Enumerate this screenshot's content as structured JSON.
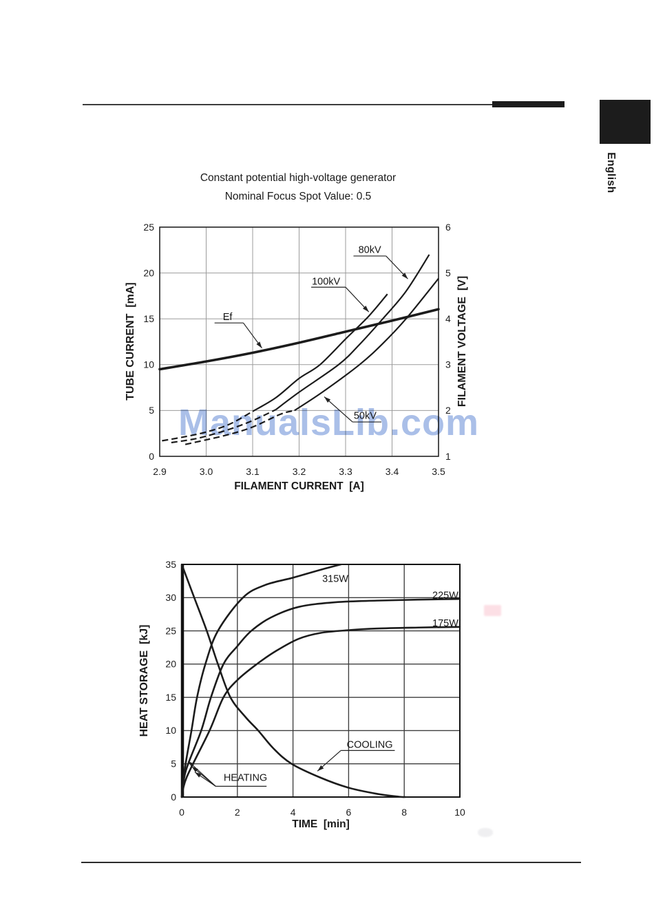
{
  "page": {
    "sidebar_tab": "English"
  },
  "watermark": "ManualsLib.com",
  "chart_data": [
    {
      "type": "line",
      "title": "Constant potential high-voltage generator",
      "subtitle": "Nominal Focus Spot Value: 0.5",
      "xlabel": "FILAMENT CURRENT  [A]",
      "ylabel": "TUBE CURRENT  [mA]",
      "ylabel_right": "FILAMENT VOLTAGE  [V]",
      "xlim": [
        2.9,
        3.5
      ],
      "ylim": [
        0,
        25
      ],
      "ylim_right": [
        1,
        6
      ],
      "xticks": [
        "2.9",
        "3.0",
        "3.1",
        "3.2",
        "3.3",
        "3.4",
        "3.5"
      ],
      "yticks": [
        "0",
        "5",
        "10",
        "15",
        "20",
        "25"
      ],
      "yticks_right": [
        "1",
        "2",
        "3",
        "4",
        "5",
        "6"
      ],
      "grid": true,
      "series": [
        {
          "name": "Ef",
          "axis": "right",
          "width": 3.6,
          "points": [
            [
              2.9,
              2.9
            ],
            [
              3.0,
              3.07
            ],
            [
              3.1,
              3.26
            ],
            [
              3.2,
              3.48
            ],
            [
              3.3,
              3.72
            ],
            [
              3.4,
              3.96
            ],
            [
              3.5,
              4.21
            ]
          ]
        },
        {
          "name": "100kV",
          "axis": "left",
          "width": 2.2,
          "dash_until": 3.13,
          "points": [
            [
              2.905,
              1.7
            ],
            [
              2.95,
              2.1
            ],
            [
              3.0,
              2.65
            ],
            [
              3.05,
              3.5
            ],
            [
              3.1,
              4.9
            ],
            [
              3.15,
              6.4
            ],
            [
              3.2,
              8.5
            ],
            [
              3.245,
              10
            ],
            [
              3.3,
              12.8
            ],
            [
              3.35,
              15.3
            ],
            [
              3.39,
              17.7
            ]
          ]
        },
        {
          "name": "80kV",
          "axis": "left",
          "width": 2.2,
          "dash_until": 3.17,
          "points": [
            [
              2.925,
              1.5
            ],
            [
              2.97,
              1.85
            ],
            [
              3.0,
              2.2
            ],
            [
              3.05,
              2.95
            ],
            [
              3.1,
              3.9
            ],
            [
              3.15,
              5.1
            ],
            [
              3.2,
              7.0
            ],
            [
              3.285,
              10
            ],
            [
              3.33,
              12.2
            ],
            [
              3.38,
              15
            ],
            [
              3.43,
              18
            ],
            [
              3.48,
              22
            ]
          ]
        },
        {
          "name": "50kV",
          "axis": "left",
          "width": 2.2,
          "dash_until": 3.2,
          "points": [
            [
              2.955,
              1.3
            ],
            [
              3.0,
              1.8
            ],
            [
              3.05,
              2.4
            ],
            [
              3.1,
              3.2
            ],
            [
              3.16,
              4.6
            ],
            [
              3.19,
              5.0
            ],
            [
              3.25,
              7.0
            ],
            [
              3.33,
              10
            ],
            [
              3.38,
              12.3
            ],
            [
              3.43,
              15
            ],
            [
              3.5,
              19.4
            ]
          ]
        }
      ],
      "annotations": [
        {
          "text": "80kV",
          "label": [
            3.352,
            22.55
          ],
          "underline": [
            3.317,
            3.387,
            21.85
          ],
          "leaders": [
            [
              [
                3.387,
                21.85
              ],
              [
                3.434,
                19.35
              ]
            ]
          ]
        },
        {
          "text": "100kV",
          "label": [
            3.258,
            19.1
          ],
          "underline": [
            3.226,
            3.3,
            18.45
          ],
          "leaders": [
            [
              [
                3.3,
                18.45
              ],
              [
                3.35,
                15.75
              ]
            ]
          ]
        },
        {
          "text": "Ef",
          "label": [
            3.046,
            15.25
          ],
          "underline": [
            3.018,
            3.08,
            14.55
          ],
          "leaders": [
            [
              [
                3.08,
                14.55
              ],
              [
                3.12,
                11.8
              ]
            ]
          ]
        },
        {
          "text": "50kV",
          "label": [
            3.342,
            4.45
          ],
          "underline": [
            3.315,
            3.377,
            3.75
          ],
          "leaders": [
            [
              [
                3.315,
                3.75
              ],
              [
                3.254,
                6.5
              ]
            ]
          ]
        }
      ]
    },
    {
      "type": "line",
      "xlabel": "TIME  [min]",
      "ylabel": "HEAT STORAGE  [kJ]",
      "xlim": [
        0,
        10
      ],
      "ylim": [
        0,
        35
      ],
      "xticks": [
        "0",
        "2",
        "4",
        "6",
        "8",
        "10"
      ],
      "yticks": [
        "0",
        "5",
        "10",
        "15",
        "20",
        "25",
        "30",
        "35"
      ],
      "grid": true,
      "series": [
        {
          "name": "315W",
          "axis": "left",
          "width": 2.6,
          "points": [
            [
              0,
              0
            ],
            [
              0.12,
              4.5
            ],
            [
              0.35,
              10
            ],
            [
              0.55,
              15
            ],
            [
              0.85,
              20
            ],
            [
              1.3,
              25
            ],
            [
              2.2,
              30
            ],
            [
              3,
              31.9
            ],
            [
              4,
              33
            ],
            [
              5,
              34.2
            ],
            [
              6,
              35.3
            ]
          ]
        },
        {
          "name": "225W",
          "axis": "left",
          "width": 2.6,
          "points": [
            [
              0,
              0
            ],
            [
              0.15,
              4
            ],
            [
              0.7,
              10
            ],
            [
              1.05,
              15
            ],
            [
              1.5,
              20
            ],
            [
              2,
              22.7
            ],
            [
              2.5,
              25
            ],
            [
              3.2,
              27
            ],
            [
              4.2,
              28.6
            ],
            [
              5.5,
              29.3
            ],
            [
              7,
              29.55
            ],
            [
              8.5,
              29.7
            ],
            [
              10,
              29.8
            ]
          ]
        },
        {
          "name": "175W",
          "axis": "left",
          "width": 2.6,
          "points": [
            [
              0,
              0
            ],
            [
              0.18,
              3
            ],
            [
              1.0,
              10
            ],
            [
              1.5,
              15
            ],
            [
              2,
              17.6
            ],
            [
              2.7,
              20
            ],
            [
              3.4,
              22
            ],
            [
              4.2,
              23.8
            ],
            [
              5,
              24.7
            ],
            [
              6,
              25.1
            ],
            [
              7,
              25.35
            ],
            [
              8.5,
              25.5
            ],
            [
              10,
              25.6
            ]
          ]
        },
        {
          "name": "COOLING",
          "axis": "left",
          "width": 2.6,
          "points": [
            [
              0,
              35
            ],
            [
              0.45,
              30
            ],
            [
              0.9,
              25
            ],
            [
              1.3,
              20
            ],
            [
              1.75,
              15
            ],
            [
              2.3,
              12
            ],
            [
              2.75,
              10
            ],
            [
              3.3,
              7.3
            ],
            [
              3.95,
              5
            ],
            [
              5,
              2.9
            ],
            [
              6,
              1.4
            ],
            [
              7,
              0.5
            ],
            [
              7.8,
              0.05
            ],
            [
              8.05,
              0
            ]
          ]
        }
      ],
      "annotations": [
        {
          "text": "315W",
          "label": [
            5.52,
            32.9
          ]
        },
        {
          "text": "225W",
          "label": [
            9.48,
            30.4
          ]
        },
        {
          "text": "175W",
          "label": [
            9.48,
            26.2
          ]
        },
        {
          "text": "COOLING",
          "label": [
            6.76,
            7.9
          ],
          "underline": [
            5.72,
            7.66,
            7.0
          ],
          "leaders": [
            [
              [
                5.72,
                7.0
              ],
              [
                4.88,
                3.9
              ]
            ]
          ]
        },
        {
          "text": "HEATING",
          "label": [
            2.29,
            2.95
          ],
          "underline": [
            1.22,
            3.05,
            1.62
          ],
          "leaders": [
            [
              [
                1.22,
                1.62
              ],
              [
                0.23,
                5.4
              ]
            ],
            [
              [
                1.22,
                1.62
              ],
              [
                0.36,
                4.6
              ]
            ],
            [
              [
                1.22,
                1.62
              ],
              [
                0.47,
                3.75
              ]
            ]
          ]
        }
      ]
    }
  ]
}
